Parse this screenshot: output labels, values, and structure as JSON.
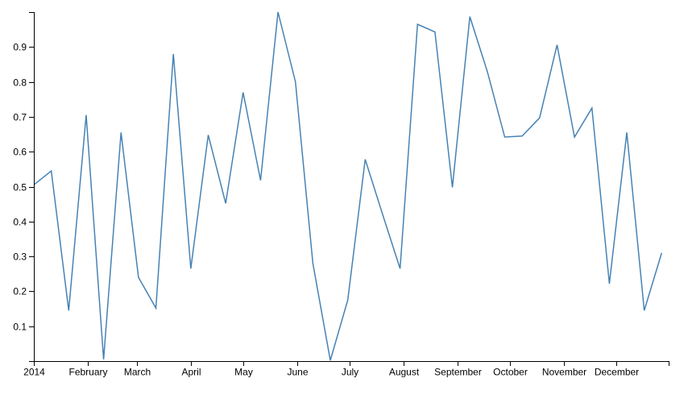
{
  "chart_data": {
    "type": "line",
    "title": "",
    "xlabel": "",
    "ylabel": "",
    "grid": false,
    "color": "#4682b4",
    "xlim": [
      "2014-01-01",
      "2014-12-31"
    ],
    "ylim": [
      0,
      1
    ],
    "x_ticks": [
      "2014",
      "February",
      "March",
      "April",
      "May",
      "June",
      "July",
      "August",
      "September",
      "October",
      "November",
      "December"
    ],
    "y_ticks": [
      "0.1",
      "0.2",
      "0.3",
      "0.4",
      "0.5",
      "0.6",
      "0.7",
      "0.8",
      "0.9"
    ],
    "x": [
      "2014-01-01",
      "2014-01-11",
      "2014-01-21",
      "2014-01-31",
      "2014-02-10",
      "2014-02-20",
      "2014-03-02",
      "2014-03-12",
      "2014-03-22",
      "2014-04-01",
      "2014-04-11",
      "2014-04-21",
      "2014-05-01",
      "2014-05-11",
      "2014-05-21",
      "2014-05-31",
      "2014-06-10",
      "2014-06-20",
      "2014-06-30",
      "2014-07-10",
      "2014-07-20",
      "2014-07-30",
      "2014-08-09",
      "2014-08-19",
      "2014-08-29",
      "2014-09-08",
      "2014-09-18",
      "2014-09-28",
      "2014-10-08",
      "2014-10-18",
      "2014-10-28",
      "2014-11-07",
      "2014-11-17",
      "2014-11-27",
      "2014-12-07",
      "2014-12-17",
      "2014-12-27"
    ],
    "values": [
      0.505,
      0.545,
      0.145,
      0.705,
      0.005,
      0.655,
      0.24,
      0.152,
      0.88,
      0.265,
      0.648,
      0.452,
      0.77,
      0.518,
      1.0,
      0.8,
      0.28,
      0.002,
      0.175,
      0.578,
      0.42,
      0.265,
      0.965,
      0.943,
      0.498,
      0.987,
      0.83,
      0.642,
      0.645,
      0.697,
      0.906,
      0.642,
      0.725,
      0.222,
      0.655,
      0.145,
      0.31
    ]
  }
}
